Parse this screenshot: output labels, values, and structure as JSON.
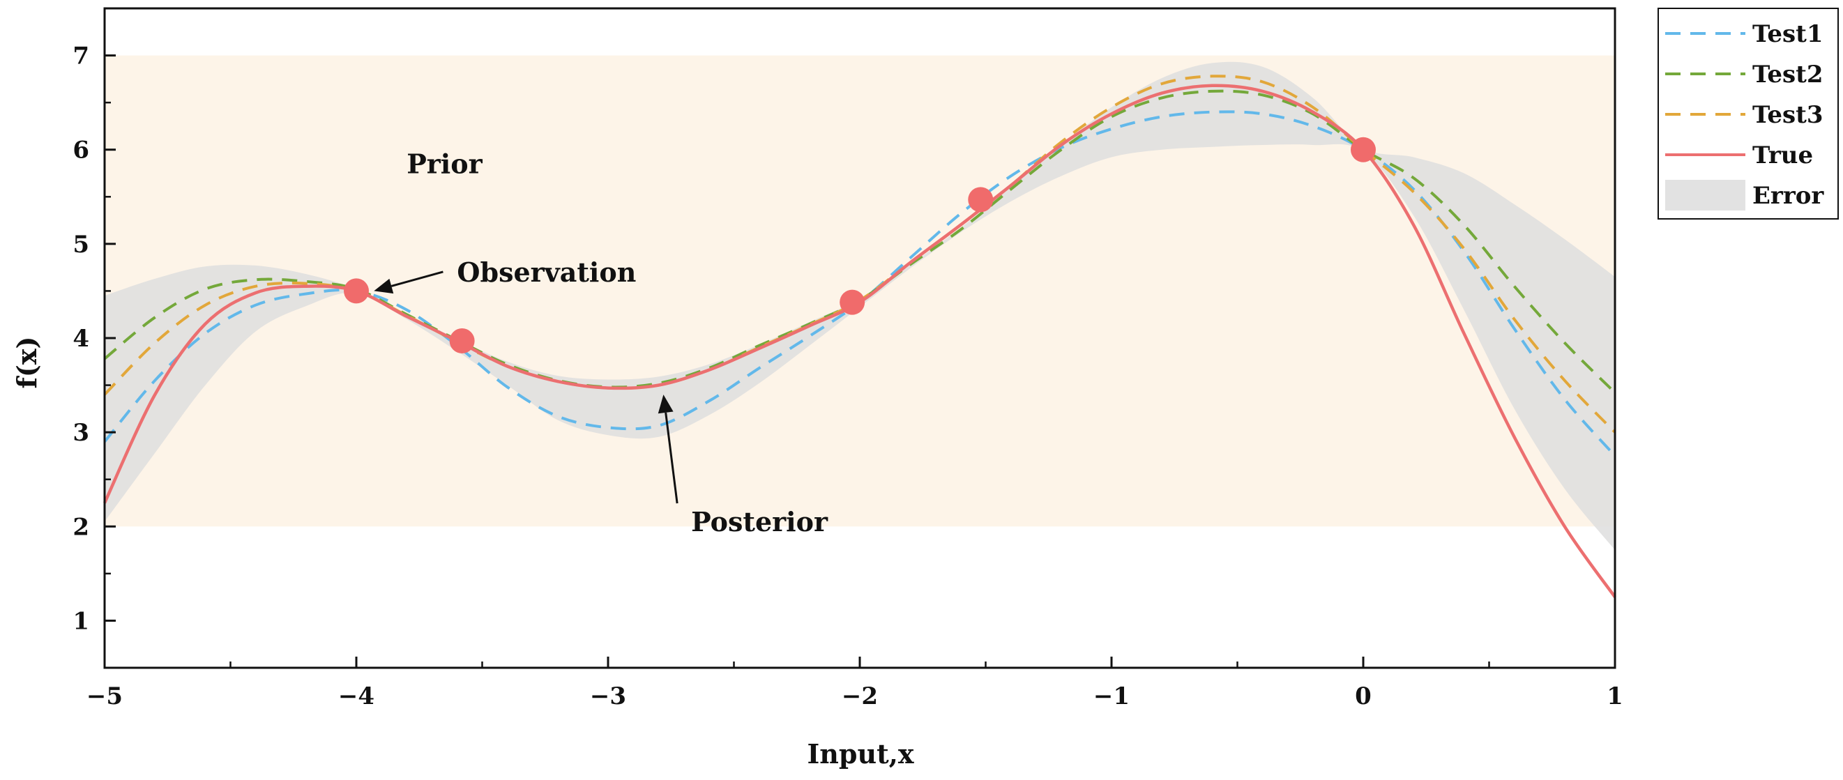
{
  "chart_data": {
    "type": "line",
    "xlabel": "Input,x",
    "ylabel": "f(x)",
    "xlim": [
      -5,
      1
    ],
    "ylim": [
      0.5,
      7.5
    ],
    "xticks": [
      -5,
      -4,
      -3,
      -2,
      -1,
      0,
      1
    ],
    "xtick_labels": [
      "−5",
      "−4",
      "−3",
      "−2",
      "−1",
      "0",
      "1"
    ],
    "yticks": [
      1,
      2,
      3,
      4,
      5,
      6,
      7
    ],
    "ytick_labels": [
      "1",
      "2",
      "3",
      "4",
      "5",
      "6",
      "7"
    ],
    "prior_region": {
      "label": "Prior",
      "x": [
        -5,
        1
      ],
      "y": [
        2,
        7
      ]
    },
    "error_band": {
      "name": "Error",
      "x": [
        -5.0,
        -4.8,
        -4.6,
        -4.4,
        -4.2,
        -4.0,
        -3.8,
        -3.6,
        -3.4,
        -3.2,
        -3.0,
        -2.8,
        -2.6,
        -2.4,
        -2.2,
        -2.0,
        -1.8,
        -1.6,
        -1.4,
        -1.2,
        -1.0,
        -0.8,
        -0.6,
        -0.4,
        -0.2,
        0.0,
        0.2,
        0.4,
        0.6,
        0.8,
        1.0
      ],
      "upper": [
        4.45,
        4.63,
        4.76,
        4.77,
        4.68,
        4.52,
        4.26,
        3.99,
        3.75,
        3.6,
        3.56,
        3.59,
        3.72,
        3.93,
        4.17,
        4.42,
        4.78,
        5.17,
        5.6,
        6.05,
        6.45,
        6.76,
        6.92,
        6.88,
        6.55,
        6.02,
        5.92,
        5.75,
        5.42,
        5.05,
        4.65
      ],
      "lower": [
        2.05,
        2.78,
        3.5,
        4.07,
        4.34,
        4.48,
        4.2,
        3.86,
        3.5,
        3.13,
        2.97,
        2.95,
        3.18,
        3.52,
        3.92,
        4.33,
        4.74,
        5.12,
        5.45,
        5.72,
        5.92,
        6.0,
        6.03,
        6.05,
        6.05,
        5.98,
        5.3,
        4.3,
        3.25,
        2.4,
        1.75
      ]
    },
    "series": [
      {
        "name": "Test1",
        "style": "dashed",
        "color": "#62b8ea",
        "x": [
          -5.0,
          -4.8,
          -4.6,
          -4.4,
          -4.2,
          -4.0,
          -3.8,
          -3.6,
          -3.4,
          -3.2,
          -3.0,
          -2.8,
          -2.6,
          -2.4,
          -2.2,
          -2.0,
          -1.8,
          -1.6,
          -1.4,
          -1.2,
          -1.0,
          -0.8,
          -0.6,
          -0.4,
          -0.2,
          0.0,
          0.2,
          0.4,
          0.6,
          0.8,
          1.0
        ],
        "y": [
          2.9,
          3.55,
          4.05,
          4.35,
          4.47,
          4.5,
          4.3,
          3.92,
          3.48,
          3.17,
          3.05,
          3.07,
          3.33,
          3.68,
          4.02,
          4.38,
          4.85,
          5.32,
          5.72,
          6.02,
          6.22,
          6.35,
          6.4,
          6.38,
          6.25,
          6.0,
          5.58,
          4.92,
          4.1,
          3.35,
          2.75
        ]
      },
      {
        "name": "Test2",
        "style": "dashed",
        "color": "#74a83a",
        "x": [
          -5.0,
          -4.8,
          -4.6,
          -4.4,
          -4.2,
          -4.0,
          -3.8,
          -3.6,
          -3.4,
          -3.2,
          -3.0,
          -2.8,
          -2.6,
          -2.4,
          -2.2,
          -2.0,
          -1.8,
          -1.6,
          -1.4,
          -1.2,
          -1.0,
          -0.8,
          -0.6,
          -0.4,
          -0.2,
          0.0,
          0.2,
          0.4,
          0.6,
          0.8,
          1.0
        ],
        "y": [
          3.78,
          4.22,
          4.52,
          4.62,
          4.6,
          4.52,
          4.25,
          3.98,
          3.72,
          3.55,
          3.48,
          3.52,
          3.68,
          3.92,
          4.15,
          4.4,
          4.78,
          5.15,
          5.58,
          6.0,
          6.35,
          6.55,
          6.62,
          6.58,
          6.38,
          6.0,
          5.7,
          5.2,
          4.55,
          3.95,
          3.42
        ]
      },
      {
        "name": "Test3",
        "style": "dashed",
        "color": "#e2a73a",
        "x": [
          -5.0,
          -4.8,
          -4.6,
          -4.4,
          -4.2,
          -4.0,
          -3.8,
          -3.6,
          -3.4,
          -3.2,
          -3.0,
          -2.8,
          -2.6,
          -2.4,
          -2.2,
          -2.0,
          -1.8,
          -1.6,
          -1.4,
          -1.2,
          -1.0,
          -0.8,
          -0.6,
          -0.4,
          -0.2,
          0.0,
          0.2,
          0.4,
          0.6,
          0.8,
          1.0
        ],
        "y": [
          3.4,
          3.95,
          4.35,
          4.55,
          4.58,
          4.5,
          4.24,
          3.96,
          3.7,
          3.54,
          3.47,
          3.5,
          3.66,
          3.9,
          4.14,
          4.4,
          4.8,
          5.2,
          5.62,
          6.08,
          6.45,
          6.7,
          6.78,
          6.72,
          6.45,
          6.0,
          5.55,
          4.95,
          4.2,
          3.55,
          3.0
        ]
      },
      {
        "name": "True",
        "style": "solid",
        "color": "#ec6f70",
        "x": [
          -5.0,
          -4.8,
          -4.6,
          -4.4,
          -4.2,
          -4.0,
          -3.8,
          -3.6,
          -3.4,
          -3.2,
          -3.0,
          -2.8,
          -2.6,
          -2.4,
          -2.2,
          -2.0,
          -1.8,
          -1.6,
          -1.4,
          -1.2,
          -1.0,
          -0.8,
          -0.6,
          -0.4,
          -0.2,
          0.0,
          0.2,
          0.4,
          0.6,
          0.8,
          1.0
        ],
        "y": [
          2.25,
          3.4,
          4.15,
          4.48,
          4.55,
          4.5,
          4.23,
          3.97,
          3.7,
          3.54,
          3.47,
          3.5,
          3.66,
          3.89,
          4.13,
          4.38,
          4.8,
          5.2,
          5.62,
          6.05,
          6.38,
          6.6,
          6.68,
          6.62,
          6.4,
          6.0,
          5.2,
          4.05,
          2.95,
          2.0,
          1.25
        ]
      }
    ],
    "observations": {
      "name": "Observation",
      "color": "#f06b6b",
      "x": [
        -4.0,
        -3.58,
        -2.03,
        -1.52,
        0.0
      ],
      "y": [
        4.5,
        3.97,
        4.38,
        5.47,
        6.0
      ]
    },
    "annotations": [
      {
        "text": "Prior",
        "x": -3.8,
        "y": 5.75
      },
      {
        "text": "Observation",
        "x": -3.6,
        "y": 4.6,
        "arrow_to": [
          -3.93,
          4.5
        ]
      },
      {
        "text": "Posterior",
        "x": -2.67,
        "y": 1.95,
        "arrow_to": [
          -2.78,
          3.4
        ]
      }
    ],
    "legend": {
      "position": "outside-right",
      "entries": [
        {
          "label": "Test1",
          "kind": "dashed",
          "color": "#62b8ea"
        },
        {
          "label": "Test2",
          "kind": "dashed",
          "color": "#74a83a"
        },
        {
          "label": "Test3",
          "kind": "dashed",
          "color": "#e2a73a"
        },
        {
          "label": "True",
          "kind": "solid",
          "color": "#ec6f70"
        },
        {
          "label": "Error",
          "kind": "patch",
          "color": "#e2e2e2"
        }
      ]
    },
    "colors": {
      "prior_fill": "#fdf4e8",
      "error_fill": "#dedede"
    }
  }
}
